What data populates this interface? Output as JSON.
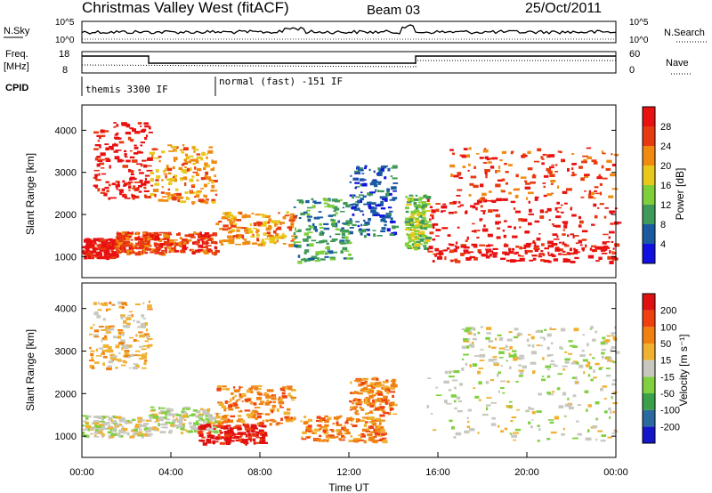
{
  "header": {
    "title": "Christmas Valley West (fitACF)",
    "beam": "Beam 03",
    "date": "25/Oct/2011"
  },
  "top_panels": {
    "nsky_label": "N.Sky",
    "nsky_ticks": [
      "10^5",
      "10^0"
    ],
    "nsearch_label": "N.Search",
    "nsearch_ticks": [
      "10^5",
      "10^0"
    ],
    "freq_label_line1": "Freq.",
    "freq_label_line2": "[MHz]",
    "freq_ticks": [
      "18",
      "8"
    ],
    "nave_label": "Nave",
    "nave_ticks": [
      "60",
      "0"
    ],
    "cpid_label": "CPID",
    "cpid_segments": [
      {
        "label": "themis 3300 IF",
        "start_hour": 0.0,
        "end_hour": 6.0
      },
      {
        "label": "normal (fast) -151 IF",
        "start_hour": 6.0,
        "end_hour": 24.0
      }
    ],
    "freq_steps": [
      {
        "start_hour": 0.0,
        "end_hour": 3.0,
        "level": "high"
      },
      {
        "start_hour": 3.0,
        "end_hour": 15.0,
        "level": "low"
      },
      {
        "start_hour": 15.0,
        "end_hour": 24.0,
        "level": "high"
      }
    ]
  },
  "chart_data": [
    {
      "type": "heatmap",
      "name": "power-panel",
      "ylabel": "Slant Range [km]",
      "yticks": [
        "1000",
        "2000",
        "3000",
        "4000"
      ],
      "ylim": [
        500,
        4600
      ],
      "xlim": [
        0,
        24
      ],
      "colorbar_label": "Power [dB]",
      "colorbar_ticks": [
        "4",
        "8",
        "12",
        "16",
        "20",
        "24",
        "28"
      ],
      "colors": [
        "#1010e0",
        "#1a5aa0",
        "#3f9a5a",
        "#7fcf3a",
        "#e8c81a",
        "#f08a10",
        "#e83a10",
        "#e81010"
      ],
      "regions": [
        {
          "x0": 0.0,
          "x1": 1.5,
          "y0": 1000,
          "y1": 1450,
          "level": 7
        },
        {
          "x0": 1.5,
          "x1": 3.0,
          "y0": 1100,
          "y1": 1600,
          "level": 6
        },
        {
          "x0": 3.0,
          "x1": 6.0,
          "y0": 1100,
          "y1": 1600,
          "level": 6
        },
        {
          "x0": 6.0,
          "x1": 9.5,
          "y0": 1300,
          "y1": 2100,
          "level": 5
        },
        {
          "x0": 0.5,
          "x1": 3.0,
          "y0": 2400,
          "y1": 4200,
          "level": 7
        },
        {
          "x0": 3.0,
          "x1": 6.0,
          "y0": 2300,
          "y1": 3700,
          "level": 5
        },
        {
          "x0": 9.5,
          "x1": 12.0,
          "y0": 900,
          "y1": 2400,
          "level": 2
        },
        {
          "x0": 12.0,
          "x1": 14.0,
          "y0": 1500,
          "y1": 3200,
          "level": 1
        },
        {
          "x0": 14.5,
          "x1": 15.5,
          "y0": 1200,
          "y1": 2500,
          "level": 3
        },
        {
          "x0": 15.5,
          "x1": 24.0,
          "y0": 900,
          "y1": 1300,
          "level": 7
        },
        {
          "x0": 15.5,
          "x1": 24.0,
          "y0": 1300,
          "y1": 2400,
          "level": 7
        },
        {
          "x0": 16.5,
          "x1": 24.0,
          "y0": 2400,
          "y1": 3600,
          "level": 6
        }
      ]
    },
    {
      "type": "heatmap",
      "name": "velocity-panel",
      "ylabel": "Slant Range [km]",
      "xlabel": "Time UT",
      "xticks": [
        "00:00",
        "04:00",
        "08:00",
        "12:00",
        "16:00",
        "20:00",
        "00:00"
      ],
      "yticks": [
        "1000",
        "2000",
        "3000",
        "4000"
      ],
      "ylim": [
        500,
        4600
      ],
      "xlim": [
        0,
        24
      ],
      "colorbar_label": "Velocity [m s⁻¹]",
      "colorbar_ticks": [
        "200",
        "100",
        "50",
        "15",
        "-15",
        "-50",
        "-100",
        "-200"
      ],
      "colors": [
        "#1414c8",
        "#2a6aa0",
        "#3aa04a",
        "#80d040",
        "#c8c8c0",
        "#f0b030",
        "#f08010",
        "#f04010",
        "#e01010"
      ],
      "regions": [
        {
          "x0": 0.0,
          "x1": 3.0,
          "y0": 1000,
          "y1": 1500,
          "level": 4
        },
        {
          "x0": 0.3,
          "x1": 3.0,
          "y0": 2600,
          "y1": 4200,
          "level": 5
        },
        {
          "x0": 3.0,
          "x1": 6.0,
          "y0": 1100,
          "y1": 1700,
          "level": 4
        },
        {
          "x0": 5.2,
          "x1": 8.2,
          "y0": 850,
          "y1": 1300,
          "level": 8
        },
        {
          "x0": 6.0,
          "x1": 9.5,
          "y0": 1300,
          "y1": 2200,
          "level": 6
        },
        {
          "x0": 9.8,
          "x1": 13.5,
          "y0": 900,
          "y1": 1500,
          "level": 6
        },
        {
          "x0": 12.0,
          "x1": 14.0,
          "y0": 1500,
          "y1": 2400,
          "level": 6
        },
        {
          "x0": 15.5,
          "x1": 24.0,
          "y0": 900,
          "y1": 2600,
          "level": 4
        },
        {
          "x0": 17.0,
          "x1": 24.0,
          "y0": 2600,
          "y1": 3600,
          "level": 4
        }
      ]
    }
  ]
}
